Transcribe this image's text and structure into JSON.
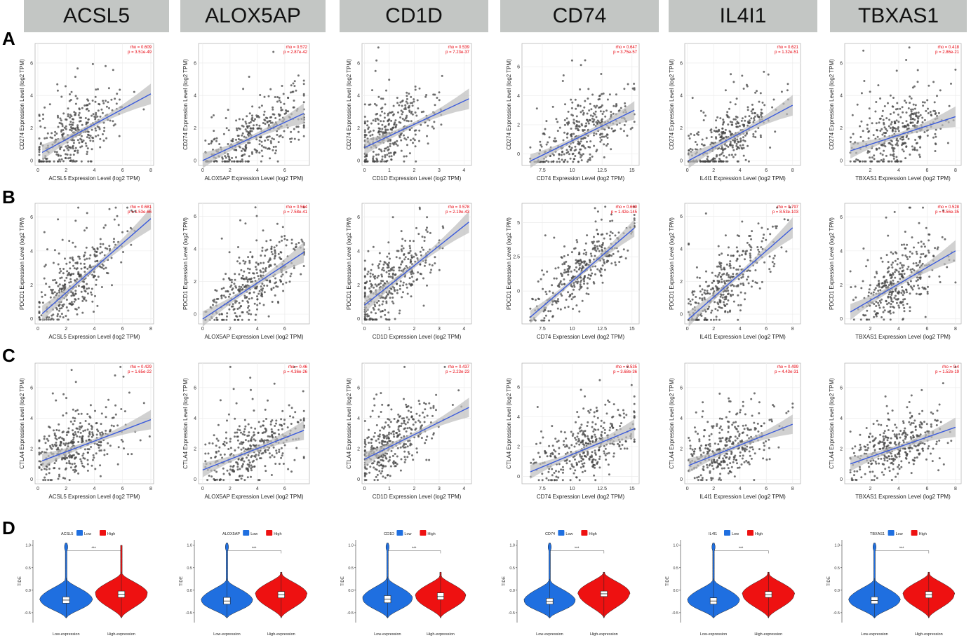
{
  "genes": [
    "ACSL5",
    "ALOX5AP",
    "CD1D",
    "CD74",
    "IL4I1",
    "TBXAS1"
  ],
  "panel_labels": [
    "A",
    "B",
    "C",
    "D"
  ],
  "colors": {
    "header_bg": "#c3c6c4",
    "fit_line": "#3b5bdb",
    "band": "#bdbdbd",
    "points": "#444444",
    "stats_text": "#e8000b",
    "low": "#1f6fe0",
    "high": "#ee1111"
  },
  "chart_data": [
    {
      "type": "scatter",
      "panel": "A",
      "gene": "ACSL5",
      "title": "ACSL5",
      "xlabel": "ACSL5 Expression Level (log2 TPM)",
      "ylabel": "CD274 Expression Level (log2 TPM)",
      "rho": "rho = 0.609",
      "p": "p = 3.51e-49",
      "xlim": [
        -0.2,
        8.2
      ],
      "xticks": [
        0,
        2,
        4,
        6,
        8
      ],
      "ylim": [
        -0.3,
        7.2
      ],
      "yticks": [
        0,
        2,
        4,
        6
      ],
      "fit": [
        [
          0.3,
          0.5
        ],
        [
          8,
          4.1
        ]
      ],
      "seed": 11,
      "xcenter": 3.0,
      "xspread": 1.6,
      "xmin": 0.1,
      "xmax": 8
    },
    {
      "type": "scatter",
      "panel": "A",
      "gene": "ALOX5AP",
      "title": "ALOX5AP",
      "xlabel": "ALOX5AP Expression Level (log2 TPM)",
      "ylabel": "CD274 Expression Level (log2 TPM)",
      "rho": "rho = 0.572",
      "p": "p = 2.87e-42",
      "xlim": [
        -0.3,
        7.8
      ],
      "xticks": [
        0,
        2,
        4,
        6
      ],
      "ylim": [
        -0.3,
        7.2
      ],
      "yticks": [
        0,
        2,
        4,
        6
      ],
      "fit": [
        [
          0,
          0.0
        ],
        [
          7.4,
          2.9
        ]
      ],
      "seed": 23,
      "xcenter": 4.2,
      "xspread": 1.7,
      "xmin": 0.2,
      "xmax": 7.4
    },
    {
      "type": "scatter",
      "panel": "A",
      "gene": "CD1D",
      "title": "CD1D",
      "xlabel": "CD1D Expression Level (log2 TPM)",
      "ylabel": "CD274 Expression Level (log2 TPM)",
      "rho": "rho = 0.539",
      "p": "p = 7.23e-37",
      "xlim": [
        -0.1,
        4.3
      ],
      "xticks": [
        0,
        1,
        2,
        3,
        4
      ],
      "ylim": [
        -0.3,
        7.2
      ],
      "yticks": [
        0,
        2,
        4,
        6
      ],
      "fit": [
        [
          0,
          0.8
        ],
        [
          4.2,
          3.8
        ]
      ],
      "seed": 37,
      "xcenter": 1.2,
      "xspread": 0.9,
      "xmin": 0.02,
      "xmax": 4.2
    },
    {
      "type": "scatter",
      "panel": "A",
      "gene": "CD74",
      "title": "CD74",
      "xlabel": "CD74 Expression Level (log2 TPM)",
      "ylabel": "CD274 Expression Level (log2 TPM)",
      "rho": "rho = 0.647",
      "p": "p = 3.75e-57",
      "xlim": [
        5.8,
        15.6
      ],
      "xticks": [
        7.5,
        10.0,
        12.5,
        15.0
      ],
      "ylim": [
        -0.8,
        7.6
      ],
      "yticks": [
        0,
        2,
        4,
        6
      ],
      "fit": [
        [
          6.5,
          -0.5
        ],
        [
          15.2,
          3.0
        ]
      ],
      "seed": 41,
      "xcenter": 11.5,
      "xspread": 1.8,
      "xmin": 6.5,
      "xmax": 15.2
    },
    {
      "type": "scatter",
      "panel": "A",
      "gene": "IL4I1",
      "title": "IL4I1",
      "xlabel": "IL4I1 Expression Level (log2 TPM)",
      "ylabel": "CD274 Expression Level (log2 TPM)",
      "rho": "rho = 0.621",
      "p": "p = 1.32e-51",
      "xlim": [
        -0.2,
        8.6
      ],
      "xticks": [
        0,
        2,
        4,
        6,
        8
      ],
      "ylim": [
        -0.3,
        7.2
      ],
      "yticks": [
        0,
        2,
        4,
        6
      ],
      "fit": [
        [
          0.1,
          0.0
        ],
        [
          8.0,
          3.4
        ]
      ],
      "seed": 53,
      "xcenter": 3.4,
      "xspread": 1.7,
      "xmin": 0.1,
      "xmax": 8
    },
    {
      "type": "scatter",
      "panel": "A",
      "gene": "TBXAS1",
      "title": "TBXAS1",
      "xlabel": "TBXAS1 Expression Level (log2 TPM)",
      "ylabel": "CD274 Expression Level (log2 TPM)",
      "rho": "rho = 0.418",
      "p": "p = 2.86e-21",
      "xlim": [
        0.2,
        8.4
      ],
      "xticks": [
        2,
        4,
        6,
        8
      ],
      "ylim": [
        -0.3,
        7.2
      ],
      "yticks": [
        0,
        2,
        4,
        6
      ],
      "fit": [
        [
          0.6,
          0.6
        ],
        [
          8.0,
          2.7
        ]
      ],
      "seed": 67,
      "xcenter": 4.3,
      "xspread": 1.4,
      "xmin": 0.6,
      "xmax": 8
    },
    {
      "type": "scatter",
      "panel": "B",
      "gene": "ACSL5",
      "title": "ACSL5",
      "xlabel": "ACSL5 Expression Level (log2 TPM)",
      "ylabel": "PDCD1 Expression Level (log2 TPM)",
      "rho": "rho = 0.681",
      "p": "p = 1.53e-66",
      "xlim": [
        -0.2,
        8.2
      ],
      "xticks": [
        0,
        2,
        4,
        6,
        8
      ],
      "ylim": [
        -0.3,
        6.8
      ],
      "yticks": [
        0,
        2,
        4,
        6
      ],
      "fit": [
        [
          0.3,
          0.3
        ],
        [
          8,
          5.9
        ]
      ],
      "seed": 71,
      "xcenter": 3.0,
      "xspread": 1.6,
      "xmin": 0.1,
      "xmax": 8
    },
    {
      "type": "scatter",
      "panel": "B",
      "gene": "ALOX5AP",
      "title": "ALOX5AP",
      "xlabel": "ALOX5AP Expression Level (log2 TPM)",
      "ylabel": "PDCD1 Expression Level (log2 TPM)",
      "rho": "rho = 0.564",
      "p": "p = 7.58e-41",
      "xlim": [
        -0.3,
        7.8
      ],
      "xticks": [
        0,
        2,
        4,
        6
      ],
      "ylim": [
        -0.6,
        6.8
      ],
      "yticks": [
        0,
        2,
        4,
        6
      ],
      "fit": [
        [
          0,
          -0.3
        ],
        [
          7.4,
          3.8
        ]
      ],
      "seed": 83,
      "xcenter": 4.2,
      "xspread": 1.7,
      "xmin": 0.2,
      "xmax": 7.4
    },
    {
      "type": "scatter",
      "panel": "B",
      "gene": "CD1D",
      "title": "CD1D",
      "xlabel": "CD1D Expression Level (log2 TPM)",
      "ylabel": "PDCD1 Expression Level (log2 TPM)",
      "rho": "rho = 0.578",
      "p": "p = 2.19e-43",
      "xlim": [
        -0.1,
        4.3
      ],
      "xticks": [
        0,
        1,
        2,
        3,
        4
      ],
      "ylim": [
        -0.3,
        6.8
      ],
      "yticks": [
        0,
        2,
        4,
        6
      ],
      "fit": [
        [
          0,
          0.8
        ],
        [
          4.2,
          5.7
        ]
      ],
      "seed": 97,
      "xcenter": 1.2,
      "xspread": 0.9,
      "xmin": 0.02,
      "xmax": 4.2
    },
    {
      "type": "scatter",
      "panel": "B",
      "gene": "CD74",
      "title": "CD74",
      "xlabel": "CD74 Expression Level (log2 TPM)",
      "ylabel": "PDCD1 Expression Level (log2 TPM)",
      "rho": "rho = 0.669",
      "p": "p = 1.42e-145",
      "xlim": [
        5.8,
        15.6
      ],
      "xticks": [
        7.5,
        10.0,
        12.5,
        15.0
      ],
      "ylim": [
        -2.4,
        6.4
      ],
      "yticks": [
        0.0,
        2.5,
        5.0
      ],
      "fit": [
        [
          6.5,
          -1.9
        ],
        [
          15.2,
          4.6
        ]
      ],
      "seed": 101,
      "xcenter": 11.5,
      "xspread": 1.8,
      "xmin": 6.5,
      "xmax": 15.2
    },
    {
      "type": "scatter",
      "panel": "B",
      "gene": "IL4I1",
      "title": "IL4I1",
      "xlabel": "IL4I1 Expression Level (log2 TPM)",
      "ylabel": "PDCD1 Expression Level (log2 TPM)",
      "rho": "rho = 0.797",
      "p": "p = 8.53e-103",
      "xlim": [
        -0.2,
        8.6
      ],
      "xticks": [
        0,
        2,
        4,
        6,
        8
      ],
      "ylim": [
        -0.6,
        6.8
      ],
      "yticks": [
        0,
        2,
        4,
        6
      ],
      "fit": [
        [
          0.1,
          -0.3
        ],
        [
          8.0,
          5.3
        ]
      ],
      "seed": 113,
      "xcenter": 3.4,
      "xspread": 1.7,
      "xmin": 0.1,
      "xmax": 8
    },
    {
      "type": "scatter",
      "panel": "B",
      "gene": "TBXAS1",
      "title": "TBXAS1",
      "xlabel": "TBXAS1 Expression Level (log2 TPM)",
      "ylabel": "PDCD1 Expression Level (log2 TPM)",
      "rho": "rho = 0.528",
      "p": "p = 6.56e-35",
      "xlim": [
        0.2,
        8.4
      ],
      "xticks": [
        2,
        4,
        6,
        8
      ],
      "ylim": [
        -0.3,
        6.8
      ],
      "yticks": [
        0,
        2,
        4,
        6
      ],
      "fit": [
        [
          0.6,
          0.4
        ],
        [
          8.0,
          4.0
        ]
      ],
      "seed": 127,
      "xcenter": 4.3,
      "xspread": 1.4,
      "xmin": 0.6,
      "xmax": 8
    },
    {
      "type": "scatter",
      "panel": "C",
      "gene": "ACSL5",
      "title": "ACSL5",
      "xlabel": "ACSL5 Expression Level (log2 TPM)",
      "ylabel": "CTLA4 Expression Level (log2 TPM)",
      "rho": "rho = 0.429",
      "p": "p = 1.65e-22",
      "xlim": [
        -0.2,
        8.2
      ],
      "xticks": [
        0,
        2,
        4,
        6,
        8
      ],
      "ylim": [
        -0.3,
        7.6
      ],
      "yticks": [
        0,
        2,
        4,
        6
      ],
      "fit": [
        [
          0.3,
          1.2
        ],
        [
          8,
          3.9
        ]
      ],
      "seed": 131,
      "xcenter": 3.0,
      "xspread": 1.6,
      "xmin": 0.1,
      "xmax": 8
    },
    {
      "type": "scatter",
      "panel": "C",
      "gene": "ALOX5AP",
      "title": "ALOX5AP",
      "xlabel": "ALOX5AP Expression Level (log2 TPM)",
      "ylabel": "CTLA4 Expression Level (log2 TPM)",
      "rho": "rho = 0.46",
      "p": "p = 4.36e-26",
      "xlim": [
        -0.3,
        7.8
      ],
      "xticks": [
        0,
        2,
        4,
        6
      ],
      "ylim": [
        -0.3,
        7.6
      ],
      "yticks": [
        0,
        2,
        4,
        6
      ],
      "fit": [
        [
          0,
          0.6
        ],
        [
          7.4,
          3.2
        ]
      ],
      "seed": 139,
      "xcenter": 4.2,
      "xspread": 1.7,
      "xmin": 0.2,
      "xmax": 7.4
    },
    {
      "type": "scatter",
      "panel": "C",
      "gene": "CD1D",
      "title": "CD1D",
      "xlabel": "CD1D Expression Level (log2 TPM)",
      "ylabel": "CTLA4 Expression Level (log2 TPM)",
      "rho": "rho = 0.437",
      "p": "p = 2.23e-23",
      "xlim": [
        -0.1,
        4.3
      ],
      "xticks": [
        0,
        1,
        2,
        3,
        4
      ],
      "ylim": [
        -0.3,
        7.6
      ],
      "yticks": [
        0,
        2,
        4,
        6
      ],
      "fit": [
        [
          0,
          1.3
        ],
        [
          4.2,
          4.7
        ]
      ],
      "seed": 149,
      "xcenter": 1.2,
      "xspread": 0.9,
      "xmin": 0.02,
      "xmax": 4.2
    },
    {
      "type": "scatter",
      "panel": "C",
      "gene": "CD74",
      "title": "CD74",
      "xlabel": "CD74 Expression Level (log2 TPM)",
      "ylabel": "CTLA4 Expression Level (log2 TPM)",
      "rho": "rho = 0.535",
      "p": "p = 3.68e-36",
      "xlim": [
        5.8,
        15.6
      ],
      "xticks": [
        7.5,
        10.0,
        12.5,
        15.0
      ],
      "ylim": [
        -0.5,
        7.6
      ],
      "yticks": [
        0,
        2,
        4,
        6
      ],
      "fit": [
        [
          6.5,
          0.3
        ],
        [
          15.2,
          3.2
        ]
      ],
      "seed": 151,
      "xcenter": 11.5,
      "xspread": 1.8,
      "xmin": 6.5,
      "xmax": 15.2
    },
    {
      "type": "scatter",
      "panel": "C",
      "gene": "IL4I1",
      "title": "IL4I1",
      "xlabel": "IL4I1 Expression Level (log2 TPM)",
      "ylabel": "CTLA4 Expression Level (log2 TPM)",
      "rho": "rho = 0.499",
      "p": "p = 4.43e-31",
      "xlim": [
        -0.2,
        8.6
      ],
      "xticks": [
        0,
        2,
        4,
        6,
        8
      ],
      "ylim": [
        -0.3,
        7.6
      ],
      "yticks": [
        0,
        2,
        4,
        6
      ],
      "fit": [
        [
          0.1,
          0.9
        ],
        [
          8.0,
          3.6
        ]
      ],
      "seed": 163,
      "xcenter": 3.4,
      "xspread": 1.7,
      "xmin": 0.1,
      "xmax": 8
    },
    {
      "type": "scatter",
      "panel": "C",
      "gene": "TBXAS1",
      "title": "TBXAS1",
      "xlabel": "TBXAS1 Expression Level (log2 TPM)",
      "ylabel": "CTLA4 Expression Level (log2 TPM)",
      "rho": "rho = 0.4",
      "p": "p = 1.52e-19",
      "xlim": [
        0.2,
        8.4
      ],
      "xticks": [
        2,
        4,
        6,
        8
      ],
      "ylim": [
        -0.3,
        7.6
      ],
      "yticks": [
        0,
        2,
        4,
        6
      ],
      "fit": [
        [
          0.6,
          1.0
        ],
        [
          8.0,
          3.4
        ]
      ],
      "seed": 173,
      "xcenter": 4.3,
      "xspread": 1.4,
      "xmin": 0.6,
      "xmax": 8
    },
    {
      "type": "violin",
      "panel": "D",
      "gene": "ACSL5",
      "legend_title": "ACSL5",
      "legend": [
        "Low",
        "High"
      ],
      "categories": [
        "Low-expression",
        "High-expression"
      ],
      "ylabel": "TIDE",
      "significance": "***",
      "ylim": [
        -0.72,
        1.12
      ],
      "yticks": [
        -0.5,
        0.0,
        0.5,
        1.0
      ],
      "groups": [
        {
          "name": "Low",
          "median": -0.22,
          "q1": -0.29,
          "q3": -0.15,
          "min": -0.62,
          "max": 1.05
        },
        {
          "name": "High",
          "median": -0.09,
          "q1": -0.16,
          "q3": -0.02,
          "min": -0.62,
          "max": 1.0
        }
      ]
    },
    {
      "type": "violin",
      "panel": "D",
      "gene": "ALOX5AP",
      "legend_title": "ALOX5AP",
      "legend": [
        "Low",
        "High"
      ],
      "categories": [
        "Low-expression",
        "High-expression"
      ],
      "ylabel": "TIDE",
      "significance": "***",
      "ylim": [
        -0.72,
        1.12
      ],
      "yticks": [
        -0.5,
        0.0,
        0.5,
        1.0
      ],
      "groups": [
        {
          "name": "Low",
          "median": -0.24,
          "q1": -0.31,
          "q3": -0.16,
          "min": -0.62,
          "max": 1.05
        },
        {
          "name": "High",
          "median": -0.1,
          "q1": -0.17,
          "q3": -0.03,
          "min": -0.62,
          "max": 0.4
        }
      ]
    },
    {
      "type": "violin",
      "panel": "D",
      "gene": "CD1D",
      "legend_title": "CD1D",
      "legend": [
        "Low",
        "High"
      ],
      "categories": [
        "Low-expression",
        "High-expression"
      ],
      "ylabel": "TIDE",
      "significance": "***",
      "ylim": [
        -0.72,
        1.12
      ],
      "yticks": [
        -0.5,
        0.0,
        0.5,
        1.0
      ],
      "groups": [
        {
          "name": "Low",
          "median": -0.2,
          "q1": -0.28,
          "q3": -0.12,
          "min": -0.62,
          "max": 1.05
        },
        {
          "name": "High",
          "median": -0.14,
          "q1": -0.21,
          "q3": -0.06,
          "min": -0.62,
          "max": 0.4
        }
      ]
    },
    {
      "type": "violin",
      "panel": "D",
      "gene": "CD74",
      "legend_title": "CD74",
      "legend": [
        "Low",
        "High"
      ],
      "categories": [
        "Low-expression",
        "High-expression"
      ],
      "ylabel": "TIDE",
      "significance": "***",
      "ylim": [
        -0.72,
        1.12
      ],
      "yticks": [
        -0.5,
        0.0,
        0.5,
        1.0
      ],
      "groups": [
        {
          "name": "Low",
          "median": -0.25,
          "q1": -0.31,
          "q3": -0.18,
          "min": -0.62,
          "max": 1.05
        },
        {
          "name": "High",
          "median": -0.08,
          "q1": -0.14,
          "q3": -0.02,
          "min": -0.62,
          "max": 0.4
        }
      ]
    },
    {
      "type": "violin",
      "panel": "D",
      "gene": "IL4I1",
      "legend_title": "IL4I1",
      "legend": [
        "Low",
        "High"
      ],
      "categories": [
        "Low-expression",
        "High-expression"
      ],
      "ylabel": "TIDE",
      "significance": "***",
      "ylim": [
        -0.72,
        1.12
      ],
      "yticks": [
        -0.5,
        0.0,
        0.5,
        1.0
      ],
      "groups": [
        {
          "name": "Low",
          "median": -0.24,
          "q1": -0.31,
          "q3": -0.17,
          "min": -0.62,
          "max": 1.05
        },
        {
          "name": "High",
          "median": -0.1,
          "q1": -0.16,
          "q3": -0.03,
          "min": -0.62,
          "max": 0.4
        }
      ]
    },
    {
      "type": "violin",
      "panel": "D",
      "gene": "TBXAS1",
      "legend_title": "TBXAS1",
      "legend": [
        "Low",
        "High"
      ],
      "categories": [
        "Low-expression",
        "High-expression"
      ],
      "ylabel": "TIDE",
      "significance": "***",
      "ylim": [
        -0.72,
        1.12
      ],
      "yticks": [
        -0.5,
        0.0,
        0.5,
        1.0
      ],
      "groups": [
        {
          "name": "Low",
          "median": -0.23,
          "q1": -0.3,
          "q3": -0.15,
          "min": -0.62,
          "max": 1.05
        },
        {
          "name": "High",
          "median": -0.1,
          "q1": -0.17,
          "q3": -0.03,
          "min": -0.62,
          "max": 0.4
        }
      ]
    }
  ]
}
